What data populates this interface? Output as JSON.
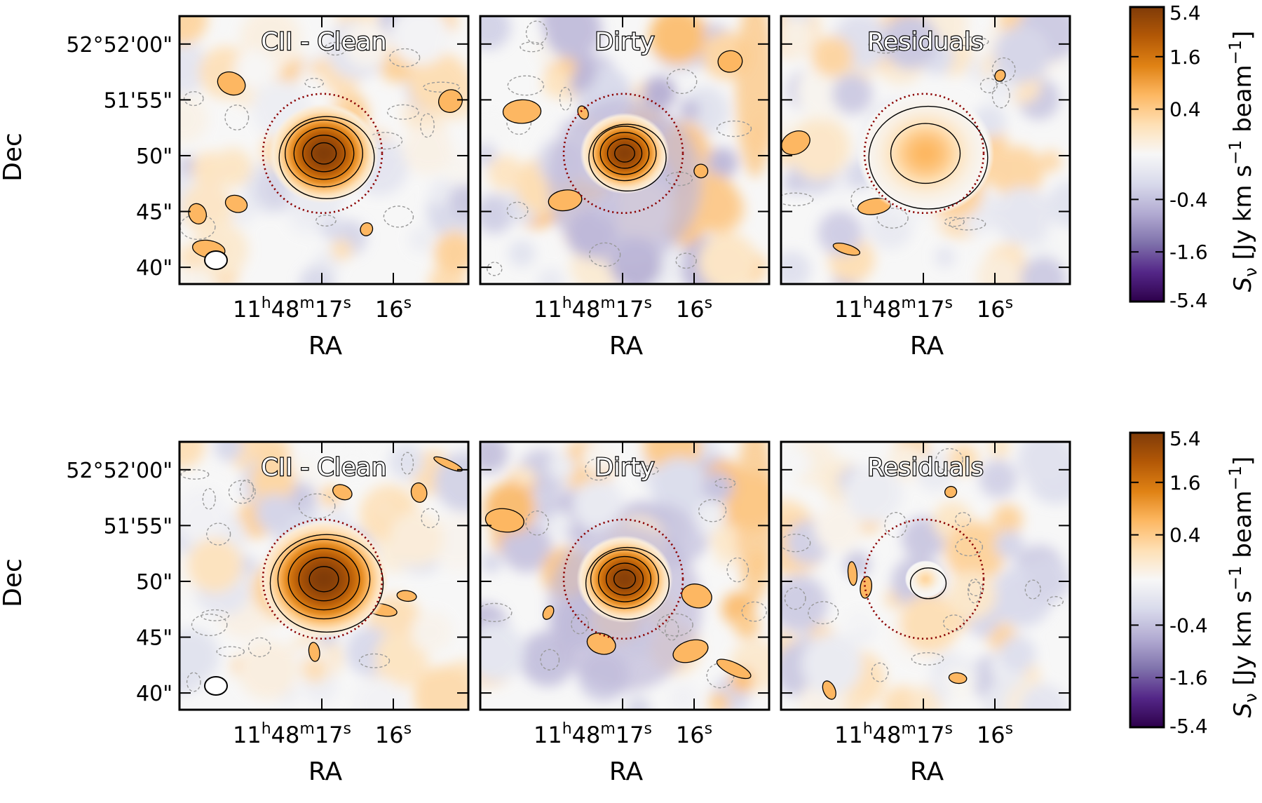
{
  "chart_data": {
    "type": "heatmap",
    "description_kind": "moment-0 maps",
    "rows": [
      {
        "panels": [
          {
            "title": "CII - Clean",
            "source": {
              "dx_arcsec": 0.0,
              "dy_arcsec": 0.0,
              "peak": 5.2,
              "sigma_arcsec": 1.6,
              "contours": 5
            },
            "aperture_radius_arcsec": 3.0,
            "show_beam": true
          },
          {
            "title": "Dirty",
            "source": {
              "dx_arcsec": 0.0,
              "dy_arcsec": 0.0,
              "peak": 4.8,
              "sigma_arcsec": 1.3,
              "contours": 5
            },
            "aperture_radius_arcsec": 3.0,
            "show_beam": false
          },
          {
            "title": "Residuals",
            "source": {
              "dx_arcsec": 0.0,
              "dy_arcsec": 0.0,
              "peak": 0.6,
              "sigma_arcsec": 2.0,
              "contours": 2
            },
            "aperture_radius_arcsec": 3.0,
            "show_beam": false
          }
        ]
      },
      {
        "panels": [
          {
            "title": "CII - Clean",
            "source": {
              "dx_arcsec": 0.0,
              "dy_arcsec": 0.0,
              "peak": 5.3,
              "sigma_arcsec": 1.9,
              "contours": 5
            },
            "aperture_radius_arcsec": 3.0,
            "show_beam": true
          },
          {
            "title": "Dirty",
            "source": {
              "dx_arcsec": 0.0,
              "dy_arcsec": 0.0,
              "peak": 4.8,
              "sigma_arcsec": 1.4,
              "contours": 5
            },
            "aperture_radius_arcsec": 3.0,
            "show_beam": false
          },
          {
            "title": "Residuals",
            "source": {
              "dx_arcsec": 0.0,
              "dy_arcsec": 0.0,
              "peak": 0.3,
              "sigma_arcsec": 0.6,
              "contours": 1
            },
            "aperture_radius_arcsec": 3.0,
            "show_beam": false
          }
        ]
      }
    ],
    "xlabel": "RA",
    "ylabel": "Dec",
    "x_ticks": [
      {
        "value_s": 17,
        "hours": "11",
        "h": "h",
        "minutes": "48",
        "m": "m",
        "seconds": "17",
        "s": "s"
      },
      {
        "value_s": 16,
        "seconds": "16",
        "s": "s"
      }
    ],
    "y_ticks": [
      {
        "value_arcsec": 60,
        "label": "52°52'00\""
      },
      {
        "value_arcsec": 55,
        "label": "51'55\""
      },
      {
        "value_arcsec": 50,
        "label": "50\""
      },
      {
        "value_arcsec": 45,
        "label": "45\""
      },
      {
        "value_arcsec": 40,
        "label": "40\""
      }
    ],
    "ylim_arcsec": [
      38.5,
      62.5
    ],
    "xlim_arcsec": [
      -12,
      12
    ],
    "colorbar": {
      "label_parts": [
        "S",
        "ν",
        " [Jy km s",
        "−1",
        " beam",
        "−1",
        "]"
      ],
      "ticks": [
        "5.4",
        "1.6",
        "0.4",
        "-0.4",
        "-1.6",
        "-5.4"
      ],
      "tick_values": [
        5.4,
        1.6,
        0.4,
        -0.4,
        -1.6,
        -5.4
      ],
      "scale": "arcsinh",
      "vmin": -5.4,
      "vmax": 5.4
    },
    "colormap": [
      "#2d004b",
      "#542788",
      "#8073ac",
      "#b2abd2",
      "#d8daeb",
      "#f7f7f7",
      "#fee0b6",
      "#fdb863",
      "#e08214",
      "#b35806",
      "#7f3b08"
    ],
    "aperture_color": "#8b0000"
  }
}
